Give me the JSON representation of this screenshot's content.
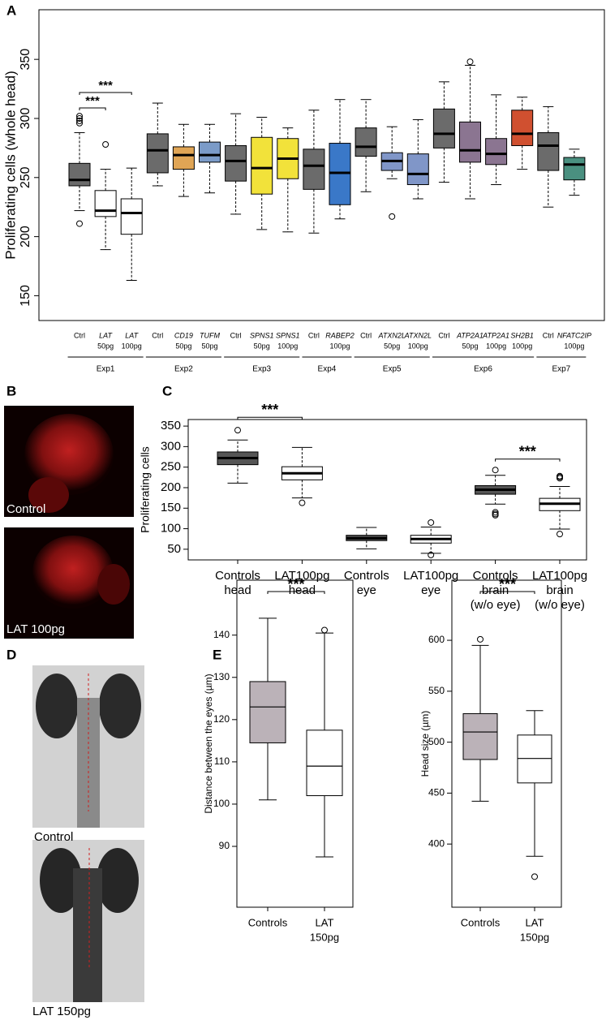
{
  "chart_data": [
    {
      "type": "box",
      "panel": "A",
      "ylabel": "Proliferating cells (whole head)",
      "ylim": [
        129,
        392
      ],
      "yticks": [
        150,
        200,
        250,
        300,
        350
      ],
      "categories": [
        {
          "gene": "Ctrl"
        },
        {
          "gene": "LAT",
          "dose": "50pg"
        },
        {
          "gene": "LAT",
          "dose": "100pg"
        },
        {
          "gene": "Ctrl"
        },
        {
          "gene": "CD19",
          "dose": "50pg"
        },
        {
          "gene": "TUFM",
          "dose": "50pg"
        },
        {
          "gene": "Ctrl"
        },
        {
          "gene": "SPNS1",
          "dose": "50pg"
        },
        {
          "gene": "SPNS1",
          "dose": "100pg"
        },
        {
          "gene": "Ctrl"
        },
        {
          "gene": "RABEP2",
          "dose": "100pg"
        },
        {
          "gene": "Ctrl"
        },
        {
          "gene": "ATXN2L",
          "dose": "50pg"
        },
        {
          "gene": "ATXN2L",
          "dose": "100pg"
        },
        {
          "gene": "Ctrl"
        },
        {
          "gene": "ATP2A1",
          "dose": "50pg"
        },
        {
          "gene": "ATP2A1",
          "dose": "100pg"
        },
        {
          "gene": "SH2B1",
          "dose": "100pg"
        },
        {
          "gene": "Ctrl"
        },
        {
          "gene": "NFATC2IP",
          "dose": "100pg"
        }
      ],
      "groups": [
        {
          "label": "Exp1",
          "size": 3
        },
        {
          "label": "Exp2",
          "size": 3
        },
        {
          "label": "Exp3",
          "size": 3
        },
        {
          "label": "Exp4",
          "size": 2
        },
        {
          "label": "Exp5",
          "size": 3
        },
        {
          "label": "Exp6",
          "size": 4
        },
        {
          "label": "Exp7",
          "size": 2
        }
      ],
      "significance": [
        {
          "label": "***",
          "from": 0,
          "to": 2
        },
        {
          "label": "***",
          "from": 0,
          "to": 1
        }
      ],
      "boxes": [
        {
          "whislo": 222,
          "q1": 243,
          "med": 248,
          "q3": 262,
          "whishi": 288,
          "fliers": [
            211,
            296,
            298,
            300,
            302
          ],
          "color": "#6b6b6b"
        },
        {
          "whislo": 189,
          "q1": 217,
          "med": 222,
          "q3": 239,
          "whishi": 257,
          "fliers": [
            278
          ],
          "color": "#ffffff"
        },
        {
          "whislo": 163,
          "q1": 202,
          "med": 220,
          "q3": 232,
          "whishi": 258,
          "fliers": [],
          "color": "#ffffff"
        },
        {
          "whislo": 243,
          "q1": 254,
          "med": 273,
          "q3": 287,
          "whishi": 313,
          "fliers": [],
          "color": "#6b6b6b"
        },
        {
          "whislo": 234,
          "q1": 257,
          "med": 269,
          "q3": 276,
          "whishi": 295,
          "fliers": [],
          "color": "#e0a555"
        },
        {
          "whislo": 237,
          "q1": 263,
          "med": 269,
          "q3": 280,
          "whishi": 295,
          "fliers": [],
          "color": "#7b9bc8"
        },
        {
          "whislo": 219,
          "q1": 247,
          "med": 264,
          "q3": 277,
          "whishi": 304,
          "fliers": [],
          "color": "#6b6b6b"
        },
        {
          "whislo": 206,
          "q1": 236,
          "med": 258,
          "q3": 284,
          "whishi": 301,
          "fliers": [],
          "color": "#f2e23a"
        },
        {
          "whislo": 204,
          "q1": 249,
          "med": 266,
          "q3": 283,
          "whishi": 292,
          "fliers": [],
          "color": "#f2e23a"
        },
        {
          "whislo": 203,
          "q1": 240,
          "med": 260,
          "q3": 274,
          "whishi": 307,
          "fliers": [],
          "color": "#6b6b6b"
        },
        {
          "whislo": 215,
          "q1": 227,
          "med": 254,
          "q3": 279,
          "whishi": 316,
          "fliers": [],
          "color": "#3a78c8"
        },
        {
          "whislo": 238,
          "q1": 268,
          "med": 276,
          "q3": 292,
          "whishi": 316,
          "fliers": [],
          "color": "#6b6b6b"
        },
        {
          "whislo": 249,
          "q1": 256,
          "med": 264,
          "q3": 271,
          "whishi": 293,
          "fliers": [
            217
          ],
          "color": "#8096c8"
        },
        {
          "whislo": 232,
          "q1": 244,
          "med": 253,
          "q3": 270,
          "whishi": 299,
          "fliers": [],
          "color": "#8096c8"
        },
        {
          "whislo": 246,
          "q1": 275,
          "med": 287,
          "q3": 308,
          "whishi": 331,
          "fliers": [],
          "color": "#6b6b6b"
        },
        {
          "whislo": 232,
          "q1": 263,
          "med": 273,
          "q3": 297,
          "whishi": 345,
          "fliers": [
            348
          ],
          "color": "#8b7591"
        },
        {
          "whislo": 244,
          "q1": 261,
          "med": 270,
          "q3": 283,
          "whishi": 320,
          "fliers": [],
          "color": "#8b7591"
        },
        {
          "whislo": 257,
          "q1": 277,
          "med": 287,
          "q3": 307,
          "whishi": 318,
          "fliers": [],
          "color": "#d05030"
        },
        {
          "whislo": 225,
          "q1": 256,
          "med": 277,
          "q3": 288,
          "whishi": 310,
          "fliers": [],
          "color": "#6b6b6b"
        },
        {
          "whislo": 235,
          "q1": 248,
          "med": 261,
          "q3": 267,
          "whishi": 274,
          "fliers": [],
          "color": "#4a9080"
        }
      ]
    },
    {
      "type": "box",
      "panel": "C",
      "ylabel": "Proliferating cells",
      "ylim": [
        24,
        366
      ],
      "yticks": [
        50,
        100,
        150,
        200,
        250,
        300,
        350
      ],
      "categories": [
        [
          "Controls",
          "head"
        ],
        [
          "LAT100pg",
          "head"
        ],
        [
          "Controls",
          "eye"
        ],
        [
          "LAT100pg",
          "eye"
        ],
        [
          "Controls",
          "brain",
          "(w/o eye)"
        ],
        [
          "LAT100pg",
          "brain",
          "(w/o eye)"
        ]
      ],
      "significance": [
        {
          "label": "***",
          "from": 0,
          "to": 1
        },
        {
          "label": "***",
          "from": 4,
          "to": 5
        }
      ],
      "boxes": [
        {
          "whislo": 211,
          "q1": 256,
          "med": 272,
          "q3": 287,
          "whishi": 316,
          "fliers": [
            340
          ],
          "color": "#555555"
        },
        {
          "whislo": 175,
          "q1": 219,
          "med": 235,
          "q3": 251,
          "whishi": 298,
          "fliers": [
            163
          ],
          "color": "#ffffff"
        },
        {
          "whislo": 51,
          "q1": 71,
          "med": 77,
          "q3": 84,
          "whishi": 103,
          "fliers": [],
          "color": "#555555"
        },
        {
          "whislo": 40,
          "q1": 65,
          "med": 75,
          "q3": 84,
          "whishi": 104,
          "fliers": [
            36,
            115
          ],
          "color": "#ffffff"
        },
        {
          "whislo": 160,
          "q1": 184,
          "med": 195,
          "q3": 205,
          "whishi": 230,
          "fliers": [
            243,
            140,
            136,
            133
          ],
          "color": "#555555"
        },
        {
          "whislo": 99,
          "q1": 144,
          "med": 161,
          "q3": 174,
          "whishi": 203,
          "fliers": [
            87,
            223,
            226,
            228
          ],
          "color": "#ffffff"
        }
      ]
    },
    {
      "type": "box",
      "panel": "E",
      "ylabel": "Distance between the eyes (µm)",
      "ylim": [
        75.6,
        153
      ],
      "yticks": [
        90,
        100,
        110,
        120,
        130,
        140
      ],
      "categories": [
        [
          "Controls"
        ],
        [
          "LAT",
          "150pg"
        ]
      ],
      "significance": [
        {
          "label": "***",
          "from": 0,
          "to": 1
        }
      ],
      "boxes": [
        {
          "whislo": 101,
          "q1": 114.5,
          "med": 123,
          "q3": 129,
          "whishi": 144,
          "fliers": [],
          "color": "#bbb2b8"
        },
        {
          "whislo": 87.5,
          "q1": 102,
          "med": 109,
          "q3": 117.5,
          "whishi": 140.5,
          "fliers": [
            141.2
          ],
          "color": "#ffffff"
        }
      ]
    },
    {
      "type": "box",
      "ylabel": "Head size (µm)",
      "ylim": [
        338,
        659
      ],
      "yticks": [
        400,
        450,
        500,
        550,
        600
      ],
      "categories": [
        [
          "Controls"
        ],
        [
          "LAT",
          "150pg"
        ]
      ],
      "significance": [
        {
          "label": "***",
          "from": 0,
          "to": 1
        }
      ],
      "boxes": [
        {
          "whislo": 442,
          "q1": 483,
          "med": 510,
          "q3": 528,
          "whishi": 595,
          "fliers": [
            601
          ],
          "color": "#bbb2b8"
        },
        {
          "whislo": 388,
          "q1": 460,
          "med": 484,
          "q3": 507,
          "whishi": 531,
          "fliers": [
            368
          ],
          "color": "#ffffff"
        }
      ]
    }
  ],
  "images": [
    {
      "panel": "B",
      "captions": [
        "Control",
        "LAT 100pg"
      ]
    },
    {
      "panel": "D",
      "captions": [
        "Control",
        "LAT 150pg"
      ]
    }
  ]
}
